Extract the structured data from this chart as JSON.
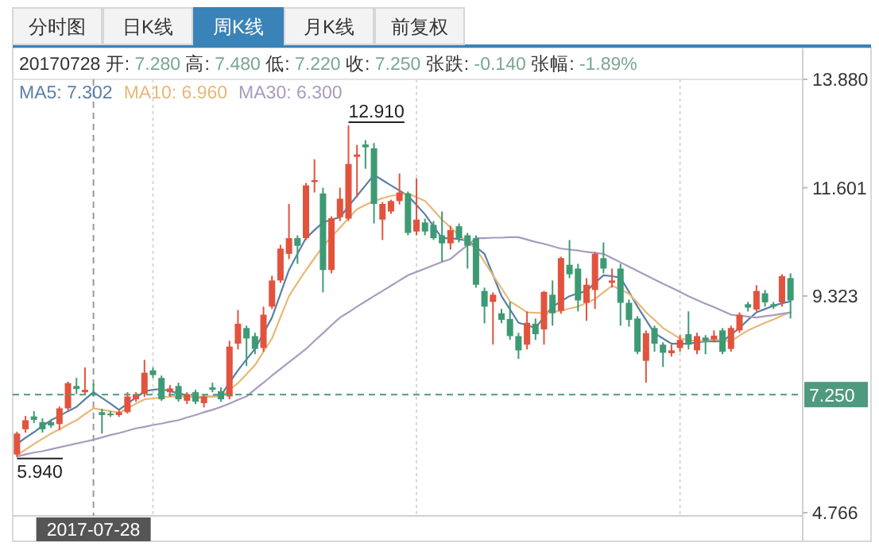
{
  "chart_data": {
    "type": "candlestick",
    "annotations": [
      "分时图",
      "日K线",
      "周K线",
      "月K线",
      "前复权",
      "20170728 开: 7.280 高: 7.480 低: 7.220 收: 7.250 张跌: -0.140 张幅: -1.89%",
      "2017-07-28",
      "12.910",
      "5.940"
    ],
    "categories": [
      null,
      null,
      null,
      null,
      null,
      null,
      null,
      null,
      null,
      null,
      null,
      null,
      null,
      null,
      null,
      null,
      null,
      null,
      null,
      null,
      null,
      null,
      null,
      null,
      null,
      null,
      null,
      null,
      null,
      null,
      null,
      null,
      null,
      null,
      null,
      null,
      null,
      null,
      null,
      null,
      null,
      null,
      null,
      null,
      null,
      null,
      null,
      null,
      null,
      null,
      null,
      null,
      null,
      null,
      null,
      null,
      null,
      null,
      null,
      null,
      null,
      null,
      null,
      null,
      null,
      null,
      null,
      null,
      null,
      null,
      null,
      null,
      null,
      null,
      null,
      null,
      null,
      null,
      null,
      null,
      null,
      null,
      null,
      null,
      null,
      null,
      null,
      null,
      null,
      null,
      null,
      null
    ],
    "ohlc": [
      [
        5.99,
        6.47,
        5.94,
        6.43
      ],
      [
        6.52,
        6.8,
        6.45,
        6.71
      ],
      [
        6.79,
        6.9,
        6.65,
        6.72
      ],
      [
        6.67,
        6.75,
        6.45,
        6.52
      ],
      [
        6.67,
        6.72,
        6.55,
        6.6
      ],
      [
        6.63,
        7.0,
        6.5,
        6.96
      ],
      [
        6.96,
        7.52,
        6.92,
        7.49
      ],
      [
        7.43,
        7.6,
        7.26,
        7.37
      ],
      [
        7.3,
        7.82,
        7.26,
        7.35
      ],
      [
        7.28,
        7.48,
        7.22,
        7.25
      ],
      [
        6.88,
        6.95,
        6.43,
        6.82
      ],
      [
        6.85,
        6.9,
        6.78,
        6.82
      ],
      [
        6.82,
        6.92,
        6.78,
        6.88
      ],
      [
        6.88,
        7.3,
        6.85,
        7.21
      ],
      [
        7.15,
        7.3,
        7.1,
        7.26
      ],
      [
        7.26,
        7.98,
        7.2,
        7.71
      ],
      [
        7.76,
        7.82,
        7.6,
        7.66
      ],
      [
        7.6,
        7.65,
        7.12,
        7.15
      ],
      [
        7.3,
        7.45,
        7.2,
        7.38
      ],
      [
        7.43,
        7.5,
        7.1,
        7.15
      ],
      [
        7.12,
        7.3,
        7.05,
        7.26
      ],
      [
        7.3,
        7.35,
        7.05,
        7.1
      ],
      [
        7.07,
        7.26,
        6.98,
        7.21
      ],
      [
        7.4,
        7.5,
        7.3,
        7.35
      ],
      [
        7.32,
        7.4,
        7.1,
        7.15
      ],
      [
        7.21,
        8.38,
        7.15,
        8.26
      ],
      [
        8.32,
        9.03,
        8.2,
        8.74
      ],
      [
        8.65,
        8.7,
        7.85,
        8.43
      ],
      [
        8.48,
        8.55,
        8.1,
        8.21
      ],
      [
        8.23,
        9.1,
        8.15,
        8.93
      ],
      [
        9.1,
        9.75,
        9.05,
        9.65
      ],
      [
        9.65,
        10.4,
        9.6,
        10.32
      ],
      [
        10.21,
        11.26,
        10.1,
        10.54
      ],
      [
        10.54,
        10.6,
        10.0,
        10.38
      ],
      [
        10.54,
        11.7,
        10.5,
        11.65
      ],
      [
        11.72,
        12.2,
        11.5,
        11.76
      ],
      [
        11.48,
        11.6,
        9.4,
        9.87
      ],
      [
        9.87,
        11.0,
        9.8,
        10.96
      ],
      [
        10.98,
        11.6,
        10.9,
        11.37
      ],
      [
        10.95,
        12.91,
        10.9,
        12.1
      ],
      [
        12.25,
        12.5,
        11.4,
        12.3
      ],
      [
        12.51,
        12.6,
        12.0,
        12.45
      ],
      [
        12.43,
        12.54,
        10.85,
        11.26
      ],
      [
        10.93,
        11.3,
        10.5,
        11.26
      ],
      [
        11.1,
        11.35,
        11.05,
        11.32
      ],
      [
        11.32,
        11.9,
        11.25,
        11.5
      ],
      [
        11.48,
        11.52,
        10.6,
        10.65
      ],
      [
        10.68,
        11.8,
        10.6,
        10.93
      ],
      [
        10.87,
        10.95,
        10.6,
        10.68
      ],
      [
        10.82,
        10.9,
        10.5,
        10.54
      ],
      [
        10.6,
        11.1,
        10.05,
        10.43
      ],
      [
        10.43,
        10.8,
        10.3,
        10.71
      ],
      [
        10.79,
        10.85,
        10.45,
        10.54
      ],
      [
        10.6,
        10.65,
        9.9,
        10.38
      ],
      [
        10.54,
        10.6,
        9.5,
        9.56
      ],
      [
        9.43,
        9.5,
        8.75,
        9.1
      ],
      [
        9.2,
        9.4,
        8.3,
        9.35
      ],
      [
        8.96,
        9.05,
        8.75,
        8.82
      ],
      [
        8.84,
        9.2,
        8.4,
        8.48
      ],
      [
        8.48,
        8.55,
        8.0,
        8.18
      ],
      [
        8.3,
        9.0,
        8.2,
        8.76
      ],
      [
        8.74,
        8.85,
        8.4,
        8.52
      ],
      [
        8.62,
        9.43,
        8.3,
        9.41
      ],
      [
        9.35,
        9.65,
        8.7,
        8.96
      ],
      [
        9.01,
        10.15,
        8.95,
        10.12
      ],
      [
        9.98,
        10.5,
        9.7,
        9.78
      ],
      [
        9.9,
        10.0,
        9.0,
        9.23
      ],
      [
        9.18,
        9.7,
        8.8,
        9.56
      ],
      [
        9.45,
        10.25,
        9.05,
        10.21
      ],
      [
        10.12,
        10.45,
        9.8,
        9.9
      ],
      [
        9.6,
        9.9,
        9.5,
        9.65
      ],
      [
        9.9,
        10.0,
        8.7,
        9.18
      ],
      [
        9.18,
        9.25,
        8.68,
        8.82
      ],
      [
        8.85,
        8.9,
        8.1,
        8.15
      ],
      [
        7.96,
        8.6,
        7.5,
        8.54
      ],
      [
        8.65,
        8.7,
        8.15,
        8.32
      ],
      [
        8.3,
        8.35,
        7.83,
        8.13
      ],
      [
        8.12,
        8.3,
        8.05,
        8.18
      ],
      [
        8.23,
        8.5,
        8.15,
        8.4
      ],
      [
        8.52,
        9.0,
        8.2,
        8.3
      ],
      [
        8.18,
        8.55,
        8.1,
        8.48
      ],
      [
        8.45,
        8.5,
        8.1,
        8.38
      ],
      [
        8.41,
        8.6,
        8.35,
        8.49
      ],
      [
        8.6,
        8.65,
        8.1,
        8.15
      ],
      [
        8.21,
        8.7,
        8.15,
        8.65
      ],
      [
        8.6,
        8.98,
        8.55,
        8.93
      ],
      [
        9.15,
        9.2,
        9.0,
        9.08
      ],
      [
        9.04,
        9.55,
        9.0,
        9.43
      ],
      [
        9.38,
        9.45,
        9.1,
        9.19
      ],
      [
        9.15,
        9.2,
        9.05,
        9.1
      ],
      [
        9.19,
        9.78,
        9.1,
        9.74
      ],
      [
        9.7,
        9.8,
        8.85,
        9.23
      ]
    ],
    "colors": [
      "#e2533e",
      "#e2533e",
      "#3d9a74",
      "#3d9a74",
      "#3d9a74",
      "#e2533e",
      "#e2533e",
      "#3d9a74",
      "#e2533e",
      "#3d9a74",
      "#3d9a74",
      "#3d9a74",
      "#e2533e",
      "#e2533e",
      "#e2533e",
      "#e2533e",
      "#3d9a74",
      "#3d9a74",
      "#e2533e",
      "#3d9a74",
      "#e2533e",
      "#3d9a74",
      "#e2533e",
      "#3d9a74",
      "#3d9a74",
      "#e2533e",
      "#e2533e",
      "#3d9a74",
      "#3d9a74",
      "#e2533e",
      "#e2533e",
      "#e2533e",
      "#e2533e",
      "#3d9a74",
      "#e2533e",
      "#e2533e",
      "#3d9a74",
      "#e2533e",
      "#e2533e",
      "#e2533e",
      "#e2533e",
      "#3d9a74",
      "#3d9a74",
      "#e2533e",
      "#e2533e",
      "#e2533e",
      "#3d9a74",
      "#e2533e",
      "#3d9a74",
      "#3d9a74",
      "#3d9a74",
      "#e2533e",
      "#3d9a74",
      "#3d9a74",
      "#3d9a74",
      "#3d9a74",
      "#e2533e",
      "#3d9a74",
      "#3d9a74",
      "#3d9a74",
      "#e2533e",
      "#3d9a74",
      "#e2533e",
      "#3d9a74",
      "#e2533e",
      "#3d9a74",
      "#3d9a74",
      "#e2533e",
      "#e2533e",
      "#3d9a74",
      "#e2533e",
      "#3d9a74",
      "#3d9a74",
      "#3d9a74",
      "#e2533e",
      "#3d9a74",
      "#3d9a74",
      "#e2533e",
      "#e2533e",
      "#3d9a74",
      "#e2533e",
      "#3d9a74",
      "#e2533e",
      "#3d9a74",
      "#e2533e",
      "#e2533e",
      "#3d9a74",
      "#e2533e",
      "#3d9a74",
      "#3d9a74",
      "#e2533e",
      "#3d9a74"
    ],
    "series": [
      {
        "name": "MA5: 7.302",
        "type": "line",
        "color": "#5b7fa8",
        "values": [
          6.21,
          6.34,
          6.46,
          6.59,
          6.71,
          6.8,
          6.9,
          6.99,
          7.15,
          7.3,
          7.18,
          7.06,
          6.93,
          7.06,
          7.19,
          7.32,
          7.35,
          7.37,
          7.32,
          7.28,
          7.23,
          7.18,
          7.2,
          7.21,
          7.23,
          7.5,
          7.76,
          7.99,
          8.21,
          8.54,
          8.87,
          9.37,
          9.87,
          10.21,
          10.54,
          10.71,
          10.87,
          10.93,
          10.98,
          11.21,
          11.43,
          11.65,
          11.87,
          11.76,
          11.65,
          11.54,
          11.43,
          11.24,
          11.04,
          10.79,
          10.54,
          10.54,
          10.52,
          10.49,
          10.35,
          10.21,
          9.77,
          9.32,
          9.04,
          8.76,
          8.71,
          8.65,
          8.88,
          9.1,
          9.21,
          9.32,
          9.38,
          9.43,
          9.6,
          9.76,
          9.74,
          9.71,
          9.41,
          9.1,
          8.82,
          8.54,
          8.43,
          8.32,
          8.32,
          8.32,
          8.35,
          8.37,
          8.37,
          8.37,
          8.51,
          8.65,
          8.82,
          8.98,
          9.05,
          9.12,
          9.17,
          9.21
        ]
      },
      {
        "name": "MA10: 6.960",
        "type": "line",
        "color": "#e8b878",
        "values": [
          5.98,
          6.09,
          6.21,
          6.32,
          6.43,
          6.52,
          6.62,
          6.71,
          6.84,
          6.96,
          6.93,
          6.9,
          6.87,
          6.96,
          7.06,
          7.15,
          7.17,
          7.19,
          7.21,
          7.21,
          7.21,
          7.21,
          7.21,
          7.21,
          7.21,
          7.35,
          7.49,
          7.68,
          7.87,
          8.15,
          8.43,
          8.88,
          9.32,
          9.6,
          9.87,
          10.12,
          10.37,
          10.57,
          10.76,
          10.96,
          11.15,
          11.24,
          11.32,
          11.38,
          11.43,
          11.46,
          11.48,
          11.4,
          11.32,
          11.13,
          10.93,
          10.77,
          10.6,
          10.46,
          10.32,
          10.04,
          9.76,
          9.49,
          9.21,
          9.1,
          8.98,
          8.97,
          8.96,
          8.99,
          9.01,
          9.06,
          9.1,
          9.18,
          9.26,
          9.4,
          9.54,
          9.46,
          9.37,
          9.18,
          8.98,
          8.82,
          8.65,
          8.54,
          8.43,
          8.4,
          8.37,
          8.39,
          8.41,
          8.39,
          8.37,
          8.49,
          8.6,
          8.68,
          8.76,
          8.83,
          8.91,
          8.98
        ]
      },
      {
        "name": "MA30: 6.300",
        "type": "line",
        "color": "#a99bbf",
        "values": [
          5.95,
          5.99,
          6.03,
          6.06,
          6.1,
          6.14,
          6.18,
          6.22,
          6.26,
          6.3,
          6.35,
          6.4,
          6.44,
          6.49,
          6.54,
          6.57,
          6.61,
          6.64,
          6.68,
          6.71,
          6.77,
          6.82,
          6.88,
          6.93,
          6.99,
          7.06,
          7.14,
          7.21,
          7.36,
          7.5,
          7.65,
          7.79,
          7.93,
          8.07,
          8.21,
          8.38,
          8.54,
          8.71,
          8.87,
          8.98,
          9.1,
          9.21,
          9.32,
          9.43,
          9.54,
          9.65,
          9.76,
          9.83,
          9.9,
          9.97,
          10.04,
          10.1,
          10.25,
          10.39,
          10.54,
          10.54,
          10.55,
          10.55,
          10.56,
          10.56,
          10.51,
          10.46,
          10.42,
          10.37,
          10.32,
          10.3,
          10.28,
          10.25,
          10.23,
          10.21,
          10.12,
          10.03,
          9.94,
          9.85,
          9.76,
          9.67,
          9.58,
          9.5,
          9.41,
          9.32,
          9.24,
          9.16,
          9.09,
          9.01,
          8.93,
          8.91,
          8.89,
          8.87,
          8.9,
          8.92,
          8.95,
          8.98
        ]
      }
    ],
    "ylim": [
      4.766,
      13.88
    ],
    "yticks": [
      {
        "value": 4.766,
        "label": "4.766"
      },
      {
        "value": 9.323,
        "label": "9.323"
      },
      {
        "value": 11.601,
        "label": "11.601"
      },
      {
        "value": 13.88,
        "label": "13.880"
      }
    ],
    "ref_lines": [
      {
        "axis": "y",
        "value": 7.25,
        "label": "7.250",
        "color": "#4e9a7e",
        "line_style": "dashed"
      }
    ],
    "grid": "x",
    "marker": "none",
    "line_style": "solid"
  }
}
